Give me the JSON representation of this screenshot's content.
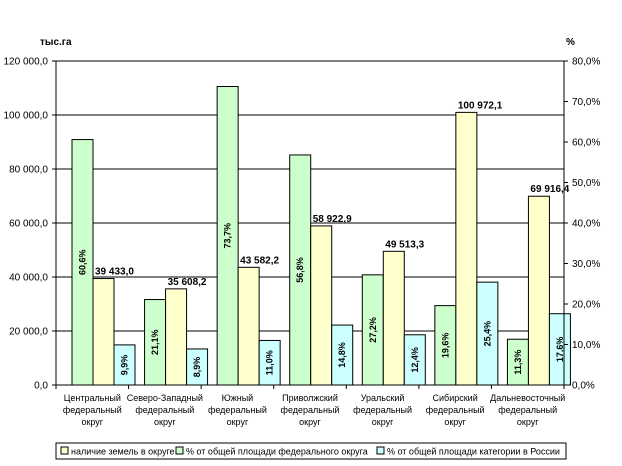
{
  "chart_data": {
    "type": "bar",
    "left_axis_unit": "тыс.га",
    "right_axis_unit": "%",
    "left_ylim": [
      0,
      120000
    ],
    "right_ylim": [
      0,
      80
    ],
    "left_ticks": [
      "0,0",
      "20 000,0",
      "40 000,0",
      "60 000,0",
      "80 000,0",
      "100 000,0",
      "120 000,0"
    ],
    "right_ticks": [
      "0,0%",
      "10,0%",
      "20,0%",
      "30,0%",
      "40,0%",
      "50,0%",
      "60,0%",
      "70,0%",
      "80,0%"
    ],
    "categories": [
      [
        "Центральный",
        "федеральный",
        "округ"
      ],
      [
        "Северо-Западный",
        "федеральный",
        "округ"
      ],
      [
        "Южный",
        "федеральный",
        "округ"
      ],
      [
        "Приволжский",
        "федеральный",
        "округ"
      ],
      [
        "Уральский",
        "федеральный",
        "округ"
      ],
      [
        "Сибирский",
        "федеральный",
        "округ"
      ],
      [
        "Дальневосточный",
        "федеральный",
        "округ"
      ]
    ],
    "series": [
      {
        "name": "% от общей площади федерального округа",
        "axis": "right",
        "color": "#ccffcc",
        "values": [
          60.6,
          21.1,
          73.7,
          56.8,
          27.2,
          19.6,
          11.3
        ],
        "labels": [
          "60,6%",
          "21,1%",
          "73,7%",
          "56,8%",
          "27,2%",
          "19,6%",
          "11,3%"
        ]
      },
      {
        "name": "наличие земель в округе",
        "axis": "left",
        "color": "#ffffcc",
        "values": [
          39433.0,
          35608.2,
          43582.2,
          58922.9,
          49513.3,
          100972.1,
          69916.4
        ],
        "labels": [
          "39 433,0",
          "35 608,2",
          "43 582,2",
          "58 922,9",
          "49 513,3",
          "100 972,1",
          "69 916,4"
        ]
      },
      {
        "name": "% от общей площади категории в России",
        "axis": "right",
        "color": "#ccffff",
        "values": [
          9.9,
          8.9,
          11.0,
          14.8,
          12.4,
          25.4,
          17.6
        ],
        "labels": [
          "9,9%",
          "8,9%",
          "11,0%",
          "14,8%",
          "12,4%",
          "25,4%",
          "17,6%"
        ]
      }
    ],
    "legend_order": [
      1,
      0,
      2
    ]
  }
}
